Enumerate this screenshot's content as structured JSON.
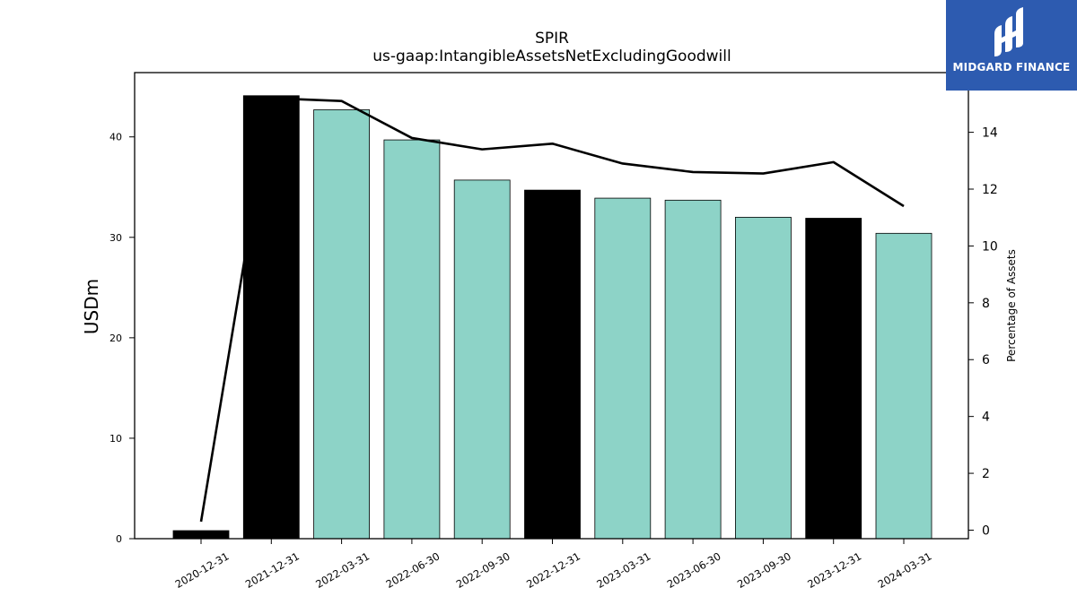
{
  "logo": {
    "text": "MIDGARD FINANCE",
    "bg_color": "#2d5bb0"
  },
  "chart_data": {
    "type": "bar",
    "title": "SPIR",
    "subtitle": "us-gaap:IntangibleAssetsNetExcludingGoodwill",
    "ylabel": "USDm",
    "y2label": "Percentage of Assets",
    "ylim": [
      0,
      46.4
    ],
    "y2lim": [
      -0.3,
      16.1
    ],
    "yticks": [
      0,
      10,
      20,
      30,
      40
    ],
    "y2ticks": [
      0,
      2,
      4,
      6,
      8,
      10,
      12,
      14
    ],
    "categories": [
      "2020-12-31",
      "2021-12-31",
      "2022-03-31",
      "2022-06-30",
      "2022-09-30",
      "2022-12-31",
      "2023-03-31",
      "2023-06-30",
      "2023-09-30",
      "2023-12-31",
      "2024-03-31"
    ],
    "series": [
      {
        "kind": "bar",
        "values": [
          0.8,
          44.1,
          42.7,
          39.7,
          35.7,
          34.7,
          33.9,
          33.7,
          32.0,
          31.9,
          30.4
        ]
      },
      {
        "kind": "line",
        "axis": "right",
        "values": [
          0.3,
          15.2,
          15.1,
          13.8,
          13.4,
          13.6,
          12.9,
          12.6,
          12.55,
          12.95,
          11.4
        ]
      }
    ],
    "bar_colors": [
      "#000000",
      "#000000",
      "#8dd3c7",
      "#8dd3c7",
      "#8dd3c7",
      "#000000",
      "#8dd3c7",
      "#8dd3c7",
      "#8dd3c7",
      "#000000",
      "#8dd3c7"
    ],
    "line_color": "#000000",
    "grid": false,
    "legend": "none"
  }
}
